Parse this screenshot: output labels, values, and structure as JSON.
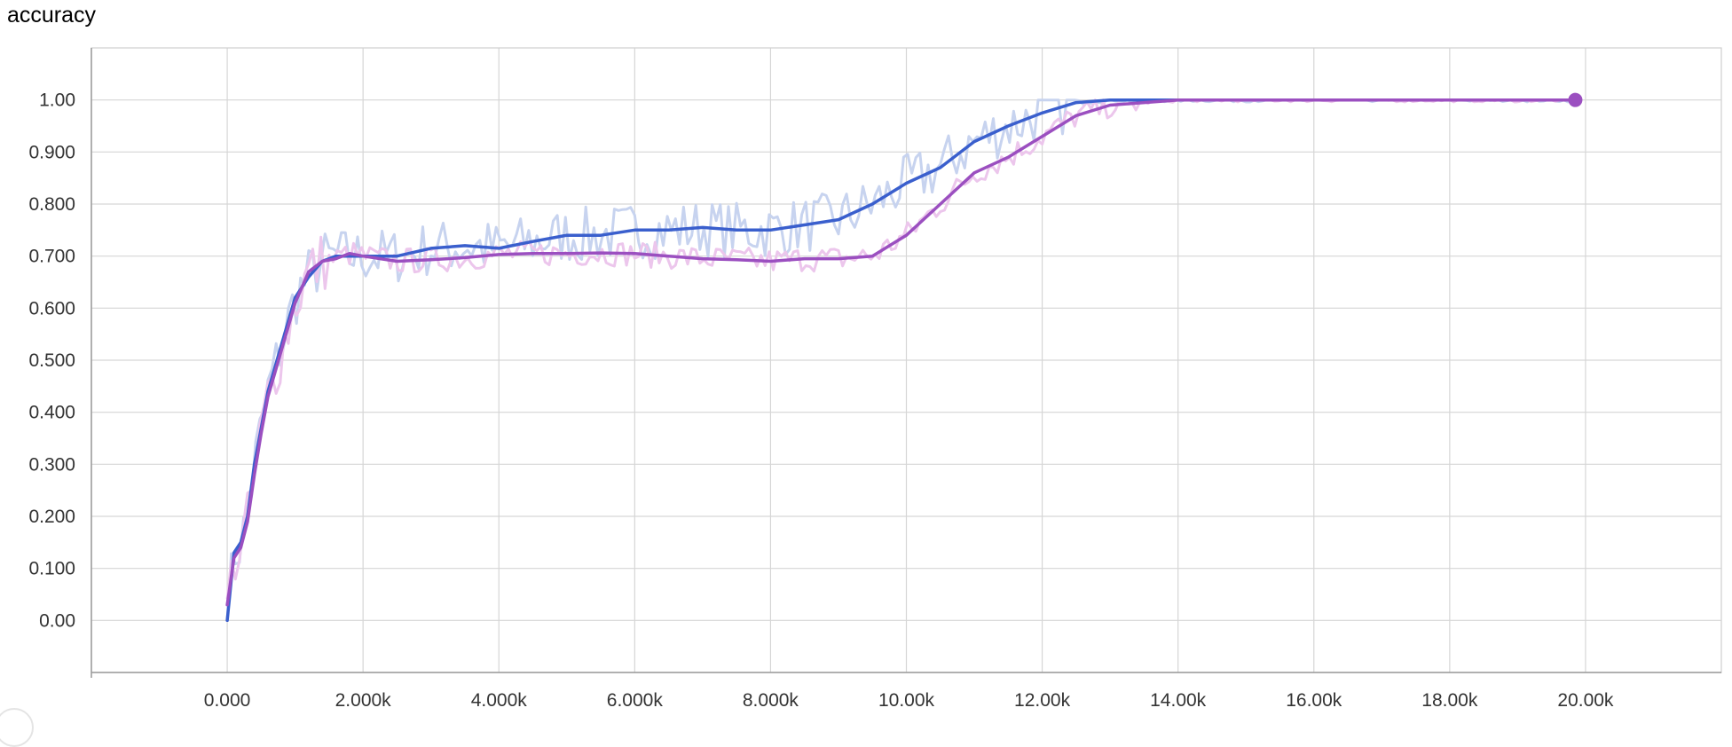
{
  "chart_data": {
    "type": "line",
    "title": "accuracy",
    "xlim": [
      -2000,
      22000
    ],
    "ylim": [
      -0.1,
      1.1
    ],
    "grid": true,
    "x_ticks": [
      {
        "v": 0,
        "label": "0.000"
      },
      {
        "v": 2000,
        "label": "2.000k"
      },
      {
        "v": 4000,
        "label": "4.000k"
      },
      {
        "v": 6000,
        "label": "6.000k"
      },
      {
        "v": 8000,
        "label": "8.000k"
      },
      {
        "v": 10000,
        "label": "10.00k"
      },
      {
        "v": 12000,
        "label": "12.00k"
      },
      {
        "v": 14000,
        "label": "14.00k"
      },
      {
        "v": 16000,
        "label": "16.00k"
      },
      {
        "v": 18000,
        "label": "18.00k"
      },
      {
        "v": 20000,
        "label": "20.00k"
      }
    ],
    "y_ticks": [
      {
        "v": 0,
        "label": "0.00"
      },
      {
        "v": 0.1,
        "label": "0.100"
      },
      {
        "v": 0.2,
        "label": "0.200"
      },
      {
        "v": 0.3,
        "label": "0.300"
      },
      {
        "v": 0.4,
        "label": "0.400"
      },
      {
        "v": 0.5,
        "label": "0.500"
      },
      {
        "v": 0.6,
        "label": "0.600"
      },
      {
        "v": 0.7,
        "label": "0.700"
      },
      {
        "v": 0.8,
        "label": "0.800"
      },
      {
        "v": 0.9,
        "label": "0.900"
      },
      {
        "v": 1.0,
        "label": "1.00"
      }
    ],
    "series": [
      {
        "color": "#3a5fcd",
        "raw_color": "#c7d3ef",
        "x": [
          0,
          100,
          200,
          300,
          400,
          500,
          600,
          800,
          1000,
          1200,
          1400,
          1600,
          1800,
          2000,
          2500,
          3000,
          3500,
          4000,
          4500,
          5000,
          5500,
          6000,
          6500,
          7000,
          7500,
          8000,
          8500,
          9000,
          9500,
          10000,
          10500,
          11000,
          11500,
          12000,
          12500,
          13000,
          14000,
          16000,
          18000,
          19850
        ],
        "values": [
          0.0,
          0.13,
          0.15,
          0.2,
          0.3,
          0.37,
          0.44,
          0.53,
          0.62,
          0.66,
          0.69,
          0.7,
          0.7,
          0.7,
          0.7,
          0.715,
          0.72,
          0.715,
          0.728,
          0.74,
          0.74,
          0.75,
          0.75,
          0.755,
          0.75,
          0.75,
          0.76,
          0.77,
          0.8,
          0.84,
          0.87,
          0.92,
          0.95,
          0.975,
          0.995,
          1.0,
          1.0,
          1.0,
          1.0,
          1.0
        ]
      },
      {
        "color": "#9b4fc0",
        "raw_color": "#ecc6ec",
        "x": [
          0,
          100,
          200,
          300,
          400,
          500,
          600,
          800,
          1000,
          1200,
          1400,
          1600,
          1800,
          2000,
          2500,
          3000,
          3500,
          4000,
          4500,
          5000,
          5500,
          6000,
          6500,
          7000,
          7500,
          8000,
          8500,
          9000,
          9500,
          10000,
          10500,
          11000,
          11500,
          12000,
          12500,
          13000,
          14000,
          16000,
          18000,
          19850
        ],
        "values": [
          0.03,
          0.12,
          0.14,
          0.19,
          0.28,
          0.36,
          0.43,
          0.52,
          0.61,
          0.67,
          0.69,
          0.695,
          0.705,
          0.7,
          0.69,
          0.693,
          0.697,
          0.703,
          0.705,
          0.705,
          0.706,
          0.705,
          0.7,
          0.695,
          0.693,
          0.69,
          0.695,
          0.695,
          0.7,
          0.74,
          0.8,
          0.86,
          0.89,
          0.93,
          0.97,
          0.99,
          1.0,
          1.0,
          1.0,
          1.0
        ]
      }
    ]
  }
}
